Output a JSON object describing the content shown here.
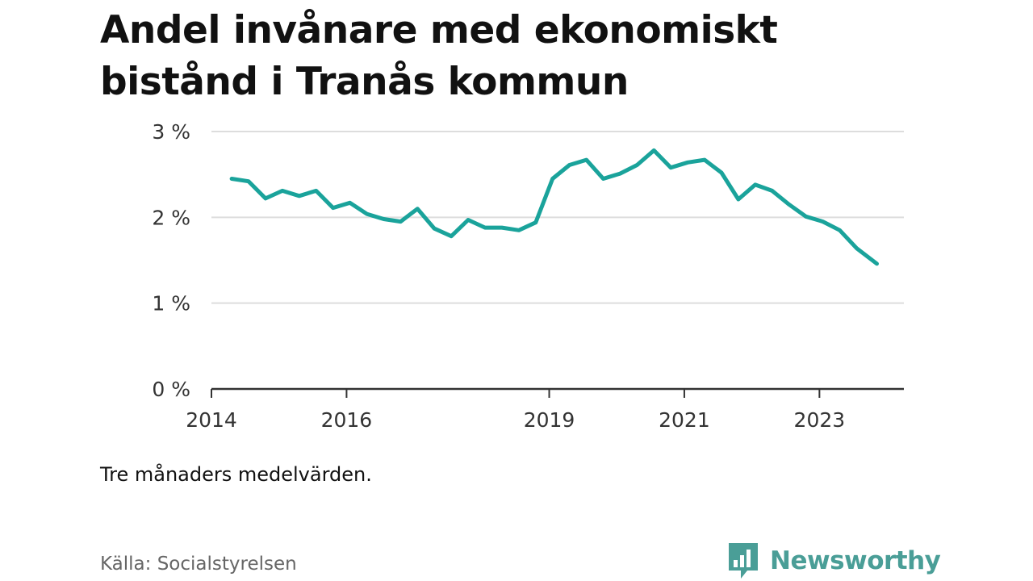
{
  "title": "Andel invånare med ekonomiskt bistånd i Tranås kommun",
  "note": "Tre månaders medelvärden.",
  "source": "Källa: Socialstyrelsen",
  "brand": {
    "name": "Newsworthy",
    "icon": "newsworthy-chart-icon",
    "color": "#4a9e97"
  },
  "chart_data": {
    "type": "line",
    "title": "Andel invånare med ekonomiskt bistånd i Tranås kommun",
    "xlabel": "",
    "ylabel": "",
    "grid": true,
    "legend": "none",
    "xlim": [
      2014.0,
      2024.25
    ],
    "ylim": [
      0,
      3
    ],
    "x_ticks": [
      2014,
      2016,
      2019,
      2021,
      2023
    ],
    "x_tick_labels": [
      "2014",
      "2016",
      "2019",
      "2021",
      "2023"
    ],
    "y_ticks": [
      0,
      1,
      2,
      3
    ],
    "y_tick_labels": [
      "0 %",
      "1 %",
      "2 %",
      "3 %"
    ],
    "line_color": "#1aa39b",
    "series": [
      {
        "name": "Andel invånare med ekonomiskt bistånd",
        "x": [
          2014.3,
          2014.55,
          2014.8,
          2015.05,
          2015.3,
          2015.55,
          2015.8,
          2016.05,
          2016.3,
          2016.55,
          2016.8,
          2017.05,
          2017.3,
          2017.55,
          2017.8,
          2018.05,
          2018.3,
          2018.55,
          2018.8,
          2019.05,
          2019.3,
          2019.55,
          2019.8,
          2020.05,
          2020.3,
          2020.55,
          2020.8,
          2021.05,
          2021.3,
          2021.55,
          2021.8,
          2022.05,
          2022.3,
          2022.55,
          2022.8,
          2023.05,
          2023.3,
          2023.55,
          2023.85
        ],
        "values": [
          2.45,
          2.42,
          2.22,
          2.31,
          2.25,
          2.31,
          2.11,
          2.17,
          2.04,
          1.98,
          1.95,
          2.1,
          1.87,
          1.78,
          1.97,
          1.88,
          1.88,
          1.85,
          1.94,
          2.45,
          2.61,
          2.67,
          2.45,
          2.51,
          2.61,
          2.78,
          2.58,
          2.64,
          2.67,
          2.52,
          2.21,
          2.38,
          2.31,
          2.15,
          2.01,
          1.95,
          1.85,
          1.64,
          1.46
        ]
      }
    ]
  }
}
